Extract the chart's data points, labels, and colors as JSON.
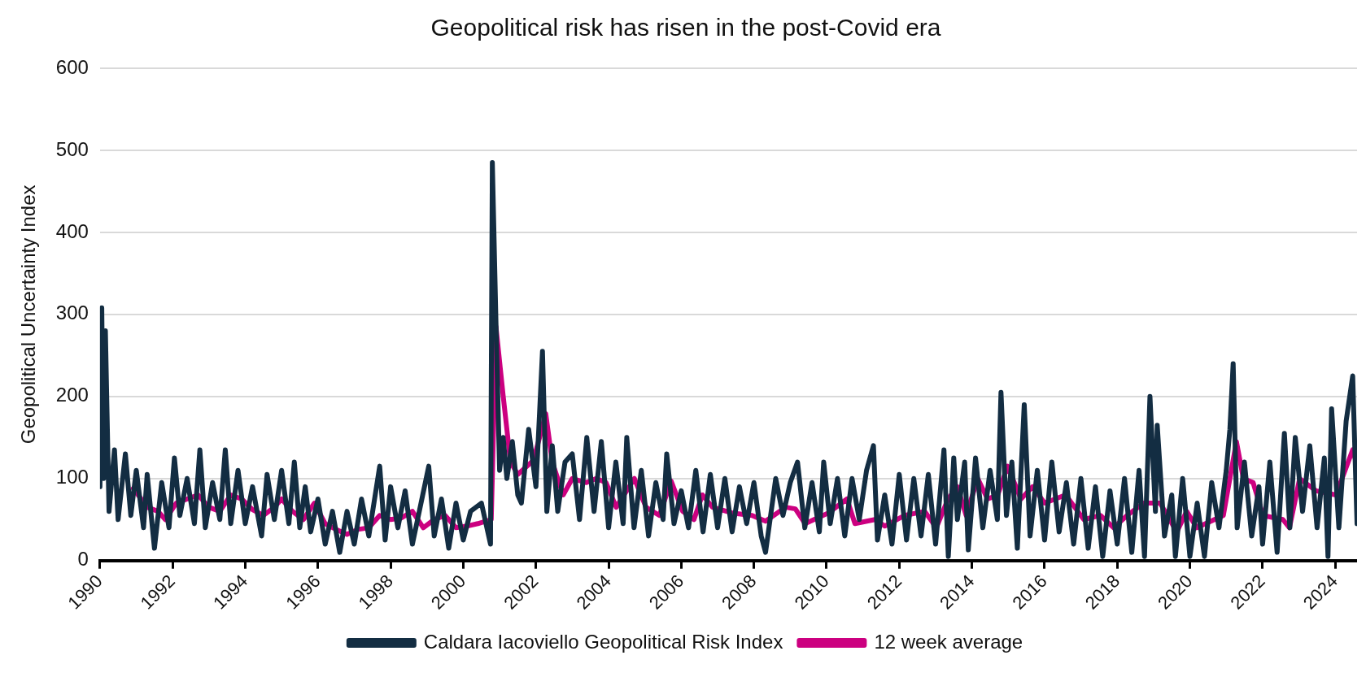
{
  "chart_data": {
    "type": "line",
    "title": "Geopolitical risk has risen in the post-Covid era",
    "ylabel": "Geopolitical Uncertainty Index",
    "xlim": [
      1990,
      2024.6
    ],
    "xticks": [
      1990,
      1992,
      1994,
      1996,
      1998,
      2000,
      2002,
      2004,
      2006,
      2008,
      2010,
      2012,
      2014,
      2016,
      2018,
      2020,
      2022,
      2024
    ],
    "ylim": [
      0,
      600
    ],
    "yticks": [
      0,
      100,
      200,
      300,
      400,
      500,
      600
    ],
    "grid": "y",
    "legend": "bottom",
    "marker": "none",
    "line_style": "solid",
    "series": [
      {
        "name": "Caldara Iacoviello Geopolitical Risk Index",
        "color": "#132d42",
        "x": [
          1990.0,
          1990.05,
          1990.1,
          1990.15,
          1990.25,
          1990.4,
          1990.5,
          1990.7,
          1990.85,
          1991.0,
          1991.2,
          1991.3,
          1991.5,
          1991.7,
          1991.9,
          1992.05,
          1992.2,
          1992.4,
          1992.6,
          1992.75,
          1992.9,
          1993.1,
          1993.3,
          1993.45,
          1993.6,
          1993.8,
          1994.0,
          1994.2,
          1994.45,
          1994.6,
          1994.8,
          1995.0,
          1995.2,
          1995.35,
          1995.5,
          1995.65,
          1995.8,
          1996.0,
          1996.2,
          1996.4,
          1996.6,
          1996.8,
          1997.0,
          1997.2,
          1997.4,
          1997.7,
          1997.85,
          1998.0,
          1998.2,
          1998.4,
          1998.6,
          1999.05,
          1999.2,
          1999.4,
          1999.6,
          1999.8,
          2000.0,
          2000.2,
          2000.5,
          2000.75,
          2000.8,
          2000.9,
          2001.0,
          2001.1,
          2001.2,
          2001.35,
          2001.5,
          2001.6,
          2001.8,
          2002.0,
          2002.1,
          2002.18,
          2002.3,
          2002.45,
          2002.6,
          2002.8,
          2003.0,
          2003.2,
          2003.4,
          2003.6,
          2003.8,
          2004.0,
          2004.2,
          2004.4,
          2004.5,
          2004.7,
          2004.9,
          2005.1,
          2005.3,
          2005.5,
          2005.6,
          2005.8,
          2006.0,
          2006.2,
          2006.4,
          2006.6,
          2006.8,
          2007.0,
          2007.2,
          2007.4,
          2007.6,
          2007.8,
          2008.0,
          2008.2,
          2008.32,
          2008.6,
          2008.8,
          2009.0,
          2009.2,
          2009.4,
          2009.6,
          2009.8,
          2009.92,
          2010.1,
          2010.3,
          2010.5,
          2010.7,
          2010.9,
          2011.1,
          2011.29,
          2011.4,
          2011.6,
          2011.8,
          2012.0,
          2012.2,
          2012.4,
          2012.6,
          2012.8,
          2013.0,
          2013.23,
          2013.35,
          2013.5,
          2013.6,
          2013.8,
          2013.9,
          2014.1,
          2014.3,
          2014.5,
          2014.7,
          2014.8,
          2014.95,
          2015.1,
          2015.25,
          2015.44,
          2015.6,
          2015.8,
          2016.0,
          2016.2,
          2016.4,
          2016.6,
          2016.8,
          2017.0,
          2017.2,
          2017.4,
          2017.6,
          2017.8,
          2018.0,
          2018.2,
          2018.4,
          2018.6,
          2018.75,
          2018.9,
          2019.05,
          2019.1,
          2019.3,
          2019.5,
          2019.6,
          2019.8,
          2020.0,
          2020.2,
          2020.4,
          2020.6,
          2020.8,
          2021.0,
          2021.1,
          2021.19,
          2021.3,
          2021.5,
          2021.7,
          2021.9,
          2022.0,
          2022.2,
          2022.4,
          2022.6,
          2022.75,
          2022.9,
          2023.1,
          2023.3,
          2023.5,
          2023.7,
          2023.8,
          2023.9,
          2024.1,
          2024.3,
          2024.48,
          2024.6
        ],
        "values": [
          90,
          308,
          100,
          280,
          60,
          135,
          50,
          130,
          55,
          110,
          40,
          105,
          15,
          95,
          40,
          125,
          55,
          100,
          45,
          135,
          40,
          95,
          50,
          135,
          45,
          110,
          45,
          90,
          30,
          105,
          50,
          110,
          45,
          120,
          40,
          90,
          35,
          75,
          20,
          60,
          10,
          60,
          20,
          75,
          30,
          115,
          25,
          90,
          40,
          85,
          20,
          115,
          30,
          75,
          15,
          70,
          25,
          60,
          70,
          20,
          485,
          290,
          110,
          150,
          100,
          145,
          80,
          70,
          160,
          90,
          180,
          255,
          60,
          140,
          60,
          120,
          130,
          50,
          150,
          60,
          145,
          40,
          120,
          45,
          150,
          40,
          110,
          30,
          95,
          50,
          130,
          45,
          85,
          40,
          110,
          35,
          105,
          40,
          100,
          35,
          90,
          45,
          95,
          30,
          10,
          100,
          55,
          95,
          120,
          40,
          95,
          35,
          120,
          45,
          100,
          30,
          100,
          50,
          110,
          140,
          25,
          80,
          20,
          105,
          25,
          100,
          30,
          105,
          20,
          135,
          5,
          125,
          50,
          120,
          13,
          125,
          40,
          110,
          50,
          205,
          55,
          120,
          15,
          190,
          30,
          110,
          25,
          120,
          35,
          95,
          20,
          100,
          15,
          90,
          5,
          85,
          20,
          100,
          10,
          110,
          5,
          200,
          60,
          165,
          30,
          80,
          5,
          100,
          5,
          70,
          5,
          95,
          40,
          110,
          160,
          240,
          40,
          120,
          30,
          90,
          20,
          120,
          10,
          155,
          40,
          150,
          60,
          140,
          40,
          125,
          5,
          185,
          40,
          170,
          225,
          45
        ]
      },
      {
        "name": "12 week average",
        "color": "#cc0080",
        "x": [
          1990.92,
          1991.3,
          1991.6,
          1991.8,
          1992.1,
          1992.4,
          1992.7,
          1993.0,
          1993.3,
          1993.6,
          1993.9,
          1994.2,
          1994.5,
          1994.8,
          1995.0,
          1995.3,
          1995.6,
          1995.9,
          1996.2,
          1996.5,
          1996.8,
          1997.1,
          1997.4,
          1997.7,
          1998.0,
          1998.3,
          1998.6,
          1998.9,
          1999.2,
          1999.5,
          1999.8,
          2000.1,
          2000.4,
          2000.77,
          2000.85,
          2000.9,
          2001.1,
          2001.3,
          2001.5,
          2001.93,
          2002.1,
          2002.27,
          2002.45,
          2002.75,
          2003.0,
          2003.39,
          2003.66,
          2003.93,
          2004.21,
          2004.71,
          2005.03,
          2005.4,
          2005.72,
          2006.04,
          2006.35,
          2006.58,
          2006.86,
          2007.4,
          2007.95,
          2008.32,
          2008.87,
          2009.14,
          2009.41,
          2010.05,
          2010.56,
          2010.78,
          2011.33,
          2011.6,
          2012.15,
          2012.7,
          2013.02,
          2013.34,
          2013.6,
          2013.84,
          2014.16,
          2014.43,
          2014.71,
          2014.98,
          2015.35,
          2015.67,
          2016.0,
          2016.58,
          2017.08,
          2017.54,
          2017.9,
          2018.27,
          2018.73,
          2019.18,
          2019.64,
          2019.91,
          2020.19,
          2020.92,
          2021.28,
          2021.47,
          2021.74,
          2022.01,
          2022.56,
          2022.74,
          2023.02,
          2023.47,
          2024.02,
          2024.48,
          2024.58
        ],
        "values": [
          88,
          65,
          60,
          50,
          70,
          75,
          80,
          65,
          60,
          80,
          75,
          62,
          55,
          65,
          75,
          60,
          50,
          70,
          45,
          38,
          32,
          38,
          40,
          55,
          50,
          52,
          60,
          40,
          50,
          55,
          40,
          42,
          45,
          50,
          190,
          285,
          200,
          120,
          105,
          122,
          150,
          179,
          120,
          80,
          100,
          95,
          100,
          95,
          65,
          100,
          65,
          55,
          97,
          60,
          50,
          80,
          65,
          58,
          55,
          48,
          65,
          63,
          45,
          58,
          75,
          45,
          50,
          42,
          55,
          60,
          40,
          75,
          90,
          55,
          100,
          75,
          80,
          115,
          75,
          90,
          70,
          80,
          50,
          55,
          40,
          55,
          70,
          70,
          35,
          60,
          40,
          55,
          145,
          100,
          95,
          55,
          50,
          40,
          100,
          85,
          80,
          135,
          120
        ]
      }
    ]
  }
}
